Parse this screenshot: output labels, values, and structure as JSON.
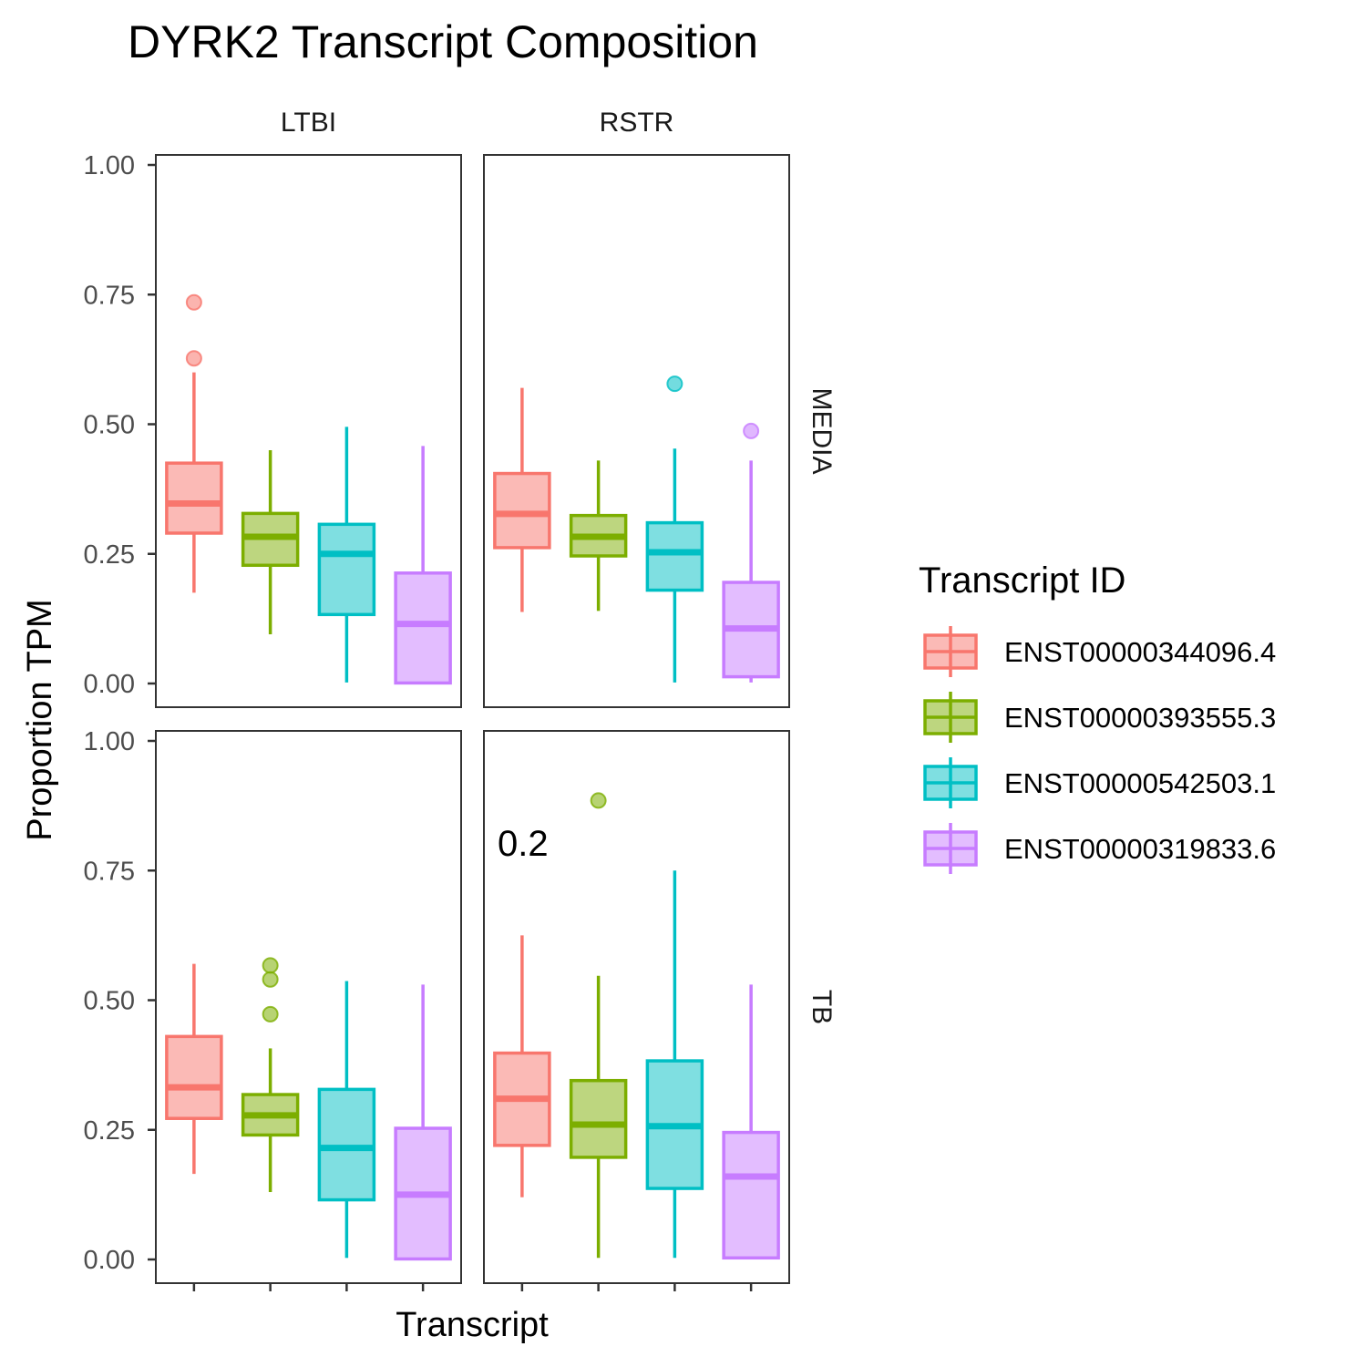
{
  "chart_data": {
    "type": "boxplot",
    "title": "DYRK2 Transcript Composition",
    "xlabel": "Transcript",
    "ylabel": "Proportion TPM",
    "ylim": [
      0,
      1
    ],
    "yticks": [
      "0.00",
      "0.25",
      "0.50",
      "0.75",
      "1.00"
    ],
    "ytick_values": [
      0,
      0.25,
      0.5,
      0.75,
      1.0
    ],
    "facet_columns": [
      "LTBI",
      "RSTR"
    ],
    "facet_rows": [
      "MEDIA",
      "TB"
    ],
    "legend": {
      "title": "Transcript ID",
      "position": "right",
      "entries": [
        {
          "label": "ENST00000344096.4",
          "color": "#F8766D"
        },
        {
          "label": "ENST00000393555.3",
          "color": "#7CAE00"
        },
        {
          "label": "ENST00000542503.1",
          "color": "#00BFC4"
        },
        {
          "label": "ENST00000319833.6",
          "color": "#C77CFF"
        }
      ]
    },
    "panels": [
      {
        "column": "LTBI",
        "row": "MEDIA",
        "annotation": "",
        "boxes": [
          {
            "transcript": "ENST00000344096.4",
            "whisker_low": 0.175,
            "q1": 0.29,
            "median": 0.347,
            "q3": 0.425,
            "whisker_high": 0.6,
            "outliers": [
              0.627,
              0.735
            ]
          },
          {
            "transcript": "ENST00000393555.3",
            "whisker_low": 0.095,
            "q1": 0.228,
            "median": 0.283,
            "q3": 0.328,
            "whisker_high": 0.45,
            "outliers": []
          },
          {
            "transcript": "ENST00000542503.1",
            "whisker_low": 0.002,
            "q1": 0.133,
            "median": 0.25,
            "q3": 0.307,
            "whisker_high": 0.495,
            "outliers": []
          },
          {
            "transcript": "ENST00000319833.6",
            "whisker_low": 0.0,
            "q1": 0.001,
            "median": 0.115,
            "q3": 0.213,
            "whisker_high": 0.458,
            "outliers": []
          }
        ]
      },
      {
        "column": "RSTR",
        "row": "MEDIA",
        "annotation": "",
        "boxes": [
          {
            "transcript": "ENST00000344096.4",
            "whisker_low": 0.138,
            "q1": 0.262,
            "median": 0.327,
            "q3": 0.405,
            "whisker_high": 0.57,
            "outliers": []
          },
          {
            "transcript": "ENST00000393555.3",
            "whisker_low": 0.14,
            "q1": 0.246,
            "median": 0.283,
            "q3": 0.324,
            "whisker_high": 0.43,
            "outliers": []
          },
          {
            "transcript": "ENST00000542503.1",
            "whisker_low": 0.002,
            "q1": 0.18,
            "median": 0.253,
            "q3": 0.31,
            "whisker_high": 0.453,
            "outliers": [
              0.578
            ]
          },
          {
            "transcript": "ENST00000319833.6",
            "whisker_low": 0.002,
            "q1": 0.013,
            "median": 0.106,
            "q3": 0.195,
            "whisker_high": 0.43,
            "outliers": [
              0.487
            ]
          }
        ]
      },
      {
        "column": "LTBI",
        "row": "TB",
        "annotation": "",
        "boxes": [
          {
            "transcript": "ENST00000344096.4",
            "whisker_low": 0.165,
            "q1": 0.272,
            "median": 0.332,
            "q3": 0.43,
            "whisker_high": 0.57,
            "outliers": []
          },
          {
            "transcript": "ENST00000393555.3",
            "whisker_low": 0.13,
            "q1": 0.24,
            "median": 0.278,
            "q3": 0.318,
            "whisker_high": 0.407,
            "outliers": [
              0.473,
              0.54,
              0.567
            ]
          },
          {
            "transcript": "ENST00000542503.1",
            "whisker_low": 0.003,
            "q1": 0.115,
            "median": 0.215,
            "q3": 0.328,
            "whisker_high": 0.537,
            "outliers": []
          },
          {
            "transcript": "ENST00000319833.6",
            "whisker_low": 0.0,
            "q1": 0.001,
            "median": 0.125,
            "q3": 0.253,
            "whisker_high": 0.53,
            "outliers": []
          }
        ]
      },
      {
        "column": "RSTR",
        "row": "TB",
        "annotation": "0.2",
        "boxes": [
          {
            "transcript": "ENST00000344096.4",
            "whisker_low": 0.12,
            "q1": 0.22,
            "median": 0.31,
            "q3": 0.398,
            "whisker_high": 0.625,
            "outliers": []
          },
          {
            "transcript": "ENST00000393555.3",
            "whisker_low": 0.003,
            "q1": 0.197,
            "median": 0.26,
            "q3": 0.345,
            "whisker_high": 0.547,
            "outliers": [
              0.885
            ]
          },
          {
            "transcript": "ENST00000542503.1",
            "whisker_low": 0.003,
            "q1": 0.137,
            "median": 0.257,
            "q3": 0.383,
            "whisker_high": 0.75,
            "outliers": []
          },
          {
            "transcript": "ENST00000319833.6",
            "whisker_low": 0.003,
            "q1": 0.003,
            "median": 0.16,
            "q3": 0.245,
            "whisker_high": 0.53,
            "outliers": []
          }
        ]
      }
    ]
  }
}
